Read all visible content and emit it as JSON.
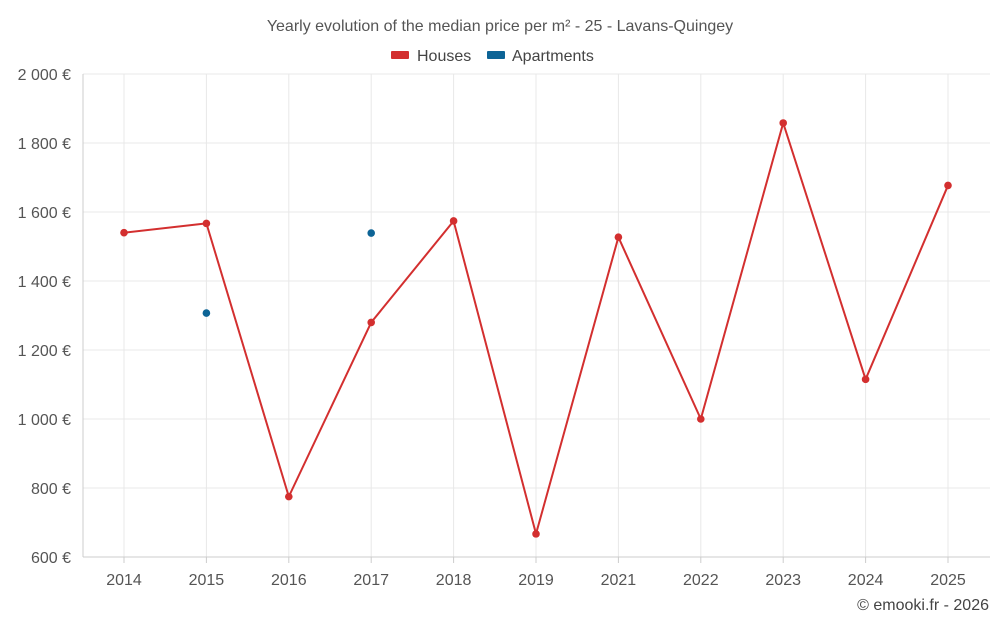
{
  "chart_data": {
    "type": "line",
    "title": "Yearly evolution of the median price per m² - 25 - Lavans-Quingey",
    "categories": [
      "2014",
      "2015",
      "2016",
      "2017",
      "2018",
      "2019",
      "2021",
      "2022",
      "2023",
      "2024",
      "2025"
    ],
    "series": [
      {
        "name": "Houses",
        "color": "#d32f2f",
        "values": [
          1540,
          1567,
          775,
          1280,
          1574,
          667,
          1527,
          1000,
          1858,
          1115,
          1677
        ]
      },
      {
        "name": "Apartments",
        "color": "#0d6496",
        "values": [
          null,
          1307,
          null,
          1539,
          null,
          null,
          null,
          null,
          null,
          null,
          null
        ]
      }
    ],
    "ylim": [
      600,
      2000
    ],
    "yticks": [
      600,
      800,
      1000,
      1200,
      1400,
      1600,
      1800,
      2000
    ],
    "ytick_labels": [
      "600 €",
      "800 €",
      "1 000 €",
      "1 200 €",
      "1 400 €",
      "1 600 €",
      "1 800 €",
      "2 000 €"
    ],
    "xlabel": "",
    "ylabel": "",
    "grid": true,
    "legend_position": "top-center"
  },
  "copyright": "© emooki.fr - 2026"
}
